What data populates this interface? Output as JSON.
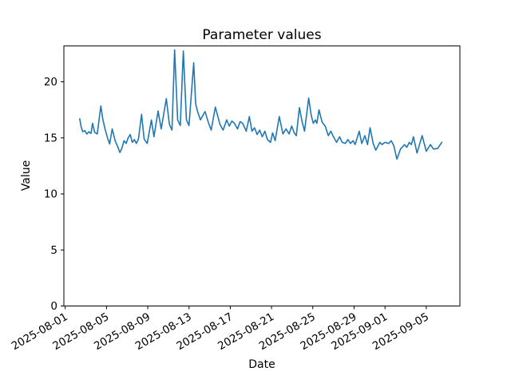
{
  "figure": {
    "title": "Parameter values",
    "xlabel": "Date",
    "ylabel": "Value"
  },
  "chart_data": {
    "type": "line",
    "title": "Parameter values",
    "xlabel": "Date",
    "ylabel": "Value",
    "grid": false,
    "legend": null,
    "line_color": "#1f77b4",
    "background_color": "#ffffff",
    "x_unit": "days since 2025-08-01",
    "xlim": [
      -0.13,
      38.26
    ],
    "ylim": [
      0,
      23.2
    ],
    "y_ticks": [
      0,
      5,
      10,
      15,
      20
    ],
    "x_ticks": [
      {
        "day": 0,
        "label": "2025-08-01"
      },
      {
        "day": 4,
        "label": "2025-08-05"
      },
      {
        "day": 8,
        "label": "2025-08-09"
      },
      {
        "day": 12,
        "label": "2025-08-13"
      },
      {
        "day": 16,
        "label": "2025-08-17"
      },
      {
        "day": 20,
        "label": "2025-08-21"
      },
      {
        "day": 24,
        "label": "2025-08-25"
      },
      {
        "day": 28,
        "label": "2025-08-29"
      },
      {
        "day": 31,
        "label": "2025-09-01"
      },
      {
        "day": 35,
        "label": "2025-09-05"
      }
    ],
    "series": [
      {
        "name": "parameter-values",
        "points": [
          [
            1.4,
            16.7
          ],
          [
            1.55,
            15.95
          ],
          [
            1.7,
            15.55
          ],
          [
            1.9,
            15.65
          ],
          [
            2.1,
            15.35
          ],
          [
            2.3,
            15.55
          ],
          [
            2.5,
            15.4
          ],
          [
            2.65,
            16.3
          ],
          [
            2.85,
            15.5
          ],
          [
            3.1,
            15.35
          ],
          [
            3.45,
            17.85
          ],
          [
            3.65,
            16.6
          ],
          [
            3.9,
            15.65
          ],
          [
            4.1,
            15.0
          ],
          [
            4.3,
            14.45
          ],
          [
            4.55,
            15.8
          ],
          [
            4.85,
            14.7
          ],
          [
            5.05,
            14.3
          ],
          [
            5.3,
            13.7
          ],
          [
            5.5,
            14.1
          ],
          [
            5.7,
            14.75
          ],
          [
            5.9,
            14.5
          ],
          [
            6.1,
            15.0
          ],
          [
            6.3,
            15.3
          ],
          [
            6.5,
            14.6
          ],
          [
            6.7,
            14.85
          ],
          [
            6.9,
            14.5
          ],
          [
            7.1,
            14.9
          ],
          [
            7.4,
            17.1
          ],
          [
            7.65,
            14.9
          ],
          [
            7.95,
            14.5
          ],
          [
            8.35,
            16.6
          ],
          [
            8.6,
            15.1
          ],
          [
            9.0,
            17.4
          ],
          [
            9.3,
            15.8
          ],
          [
            9.8,
            18.5
          ],
          [
            10.1,
            16.2
          ],
          [
            10.35,
            15.7
          ],
          [
            10.6,
            22.85
          ],
          [
            10.9,
            16.6
          ],
          [
            11.15,
            16.1
          ],
          [
            11.45,
            22.75
          ],
          [
            11.75,
            16.6
          ],
          [
            12.0,
            16.1
          ],
          [
            12.45,
            21.7
          ],
          [
            12.65,
            18.0
          ],
          [
            12.85,
            17.3
          ],
          [
            13.1,
            16.6
          ],
          [
            13.55,
            17.35
          ],
          [
            13.9,
            16.3
          ],
          [
            14.15,
            15.7
          ],
          [
            14.55,
            17.75
          ],
          [
            15.0,
            16.2
          ],
          [
            15.3,
            15.7
          ],
          [
            15.65,
            16.6
          ],
          [
            15.9,
            16.05
          ],
          [
            16.15,
            16.5
          ],
          [
            16.4,
            16.3
          ],
          [
            16.7,
            15.8
          ],
          [
            16.95,
            16.45
          ],
          [
            17.2,
            16.3
          ],
          [
            17.55,
            15.6
          ],
          [
            17.85,
            16.9
          ],
          [
            18.1,
            15.6
          ],
          [
            18.35,
            15.9
          ],
          [
            18.6,
            15.3
          ],
          [
            18.85,
            15.7
          ],
          [
            19.1,
            15.1
          ],
          [
            19.35,
            15.6
          ],
          [
            19.6,
            14.85
          ],
          [
            19.9,
            14.6
          ],
          [
            20.1,
            15.45
          ],
          [
            20.35,
            14.75
          ],
          [
            20.75,
            16.9
          ],
          [
            21.1,
            15.35
          ],
          [
            21.4,
            15.8
          ],
          [
            21.7,
            15.35
          ],
          [
            21.95,
            16.05
          ],
          [
            22.2,
            15.45
          ],
          [
            22.4,
            15.2
          ],
          [
            22.7,
            17.7
          ],
          [
            22.95,
            16.5
          ],
          [
            23.2,
            15.6
          ],
          [
            23.6,
            18.55
          ],
          [
            23.85,
            17.0
          ],
          [
            24.05,
            16.3
          ],
          [
            24.25,
            16.6
          ],
          [
            24.4,
            16.3
          ],
          [
            24.6,
            17.5
          ],
          [
            24.9,
            16.4
          ],
          [
            25.2,
            16.05
          ],
          [
            25.5,
            15.2
          ],
          [
            25.75,
            15.6
          ],
          [
            26.0,
            15.1
          ],
          [
            26.3,
            14.6
          ],
          [
            26.6,
            15.1
          ],
          [
            26.85,
            14.6
          ],
          [
            27.15,
            14.5
          ],
          [
            27.4,
            14.85
          ],
          [
            27.65,
            14.5
          ],
          [
            27.9,
            14.75
          ],
          [
            28.1,
            14.4
          ],
          [
            28.5,
            15.6
          ],
          [
            28.75,
            14.5
          ],
          [
            29.05,
            15.2
          ],
          [
            29.3,
            14.4
          ],
          [
            29.55,
            15.9
          ],
          [
            29.85,
            14.5
          ],
          [
            30.1,
            13.9
          ],
          [
            30.5,
            14.6
          ],
          [
            30.7,
            14.4
          ],
          [
            31.0,
            14.6
          ],
          [
            31.35,
            14.5
          ],
          [
            31.6,
            14.75
          ],
          [
            31.85,
            14.3
          ],
          [
            32.15,
            13.1
          ],
          [
            32.5,
            14.0
          ],
          [
            32.9,
            14.4
          ],
          [
            33.1,
            14.15
          ],
          [
            33.35,
            14.6
          ],
          [
            33.55,
            14.4
          ],
          [
            33.75,
            15.1
          ],
          [
            34.1,
            13.65
          ],
          [
            34.6,
            15.2
          ],
          [
            35.0,
            13.8
          ],
          [
            35.4,
            14.4
          ],
          [
            35.7,
            14.0
          ],
          [
            36.1,
            14.05
          ],
          [
            36.5,
            14.6
          ]
        ]
      }
    ]
  }
}
